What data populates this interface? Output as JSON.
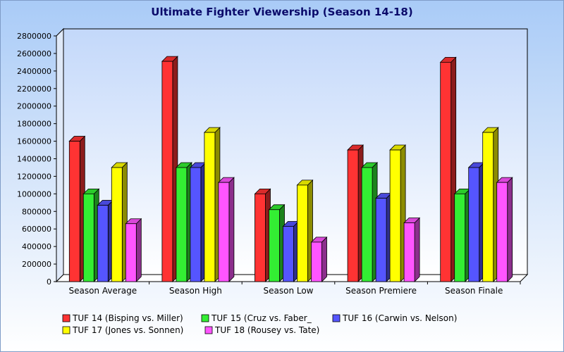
{
  "chart_data": {
    "type": "bar",
    "title": "Ultimate Fighter Viewership (Season 14-18)",
    "xlabel": "",
    "ylabel": "",
    "ylim": [
      0,
      2800000
    ],
    "yticks": [
      0,
      200000,
      400000,
      600000,
      800000,
      1000000,
      1200000,
      1400000,
      1600000,
      1800000,
      2000000,
      2200000,
      2400000,
      2600000,
      2800000
    ],
    "grid": false,
    "legend_position": "bottom",
    "categories": [
      "Season Average",
      "Season High",
      "Season Low",
      "Season Premiere",
      "Season Finale"
    ],
    "series": [
      {
        "name": "TUF 14 (Bisping vs. Miller)",
        "color": "#ff3333",
        "values": [
          1600000,
          2510000,
          1000000,
          1500000,
          2500000
        ]
      },
      {
        "name": "TUF 15 (Cruz vs. Faber_",
        "color": "#33ee33",
        "values": [
          1000000,
          1300000,
          820000,
          1300000,
          1000000
        ]
      },
      {
        "name": "TUF 16 (Carwin vs. Nelson)",
        "color": "#5555ff",
        "values": [
          870000,
          1300000,
          630000,
          950000,
          1300000
        ]
      },
      {
        "name": "TUF 17 (Jones vs. Sonnen)",
        "color": "#ffff00",
        "values": [
          1300000,
          1700000,
          1100000,
          1500000,
          1700000
        ]
      },
      {
        "name": "TUF 18 (Rousey vs. Tate)",
        "color": "#ff55ff",
        "values": [
          660000,
          1130000,
          450000,
          670000,
          1130000
        ]
      }
    ]
  }
}
